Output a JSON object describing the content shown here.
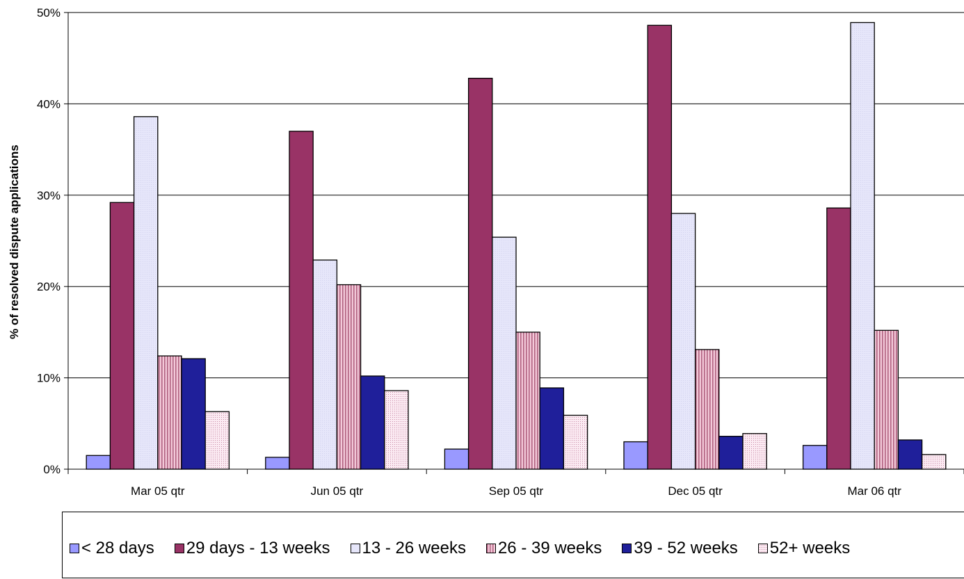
{
  "chart_data": {
    "type": "bar",
    "ylabel": "% of resolved dispute applications",
    "xlabel": "",
    "ylim": [
      0,
      50
    ],
    "yticks": [
      "0%",
      "10%",
      "20%",
      "30%",
      "40%",
      "50%"
    ],
    "grid": true,
    "legend_position": "bottom",
    "categories": [
      "Mar 05 qtr",
      "Jun 05 qtr",
      "Sep 05 qtr",
      "Dec 05 qtr",
      "Mar 06 qtr"
    ],
    "series": [
      {
        "name": "< 28 days",
        "color": "#9999ff",
        "values": [
          1.5,
          1.3,
          2.2,
          3.0,
          2.6
        ]
      },
      {
        "name": "29 days - 13 weeks",
        "color": "#993366",
        "values": [
          29.2,
          37.0,
          42.8,
          48.6,
          28.6
        ]
      },
      {
        "name": "13 - 26 weeks",
        "color": "#e6e6fa",
        "values": [
          38.6,
          22.9,
          25.4,
          28.0,
          48.9
        ]
      },
      {
        "name": "26 - 39 weeks",
        "color": "#e8b4c8",
        "values": [
          12.4,
          20.2,
          15.0,
          13.1,
          15.2
        ]
      },
      {
        "name": "39 - 52 weeks",
        "color": "#1f1f9a",
        "values": [
          12.1,
          10.2,
          8.9,
          3.6,
          3.2
        ]
      },
      {
        "name": "52+ weeks",
        "color": "#f2d6e4",
        "values": [
          6.3,
          8.6,
          5.9,
          3.9,
          1.6
        ]
      }
    ]
  }
}
